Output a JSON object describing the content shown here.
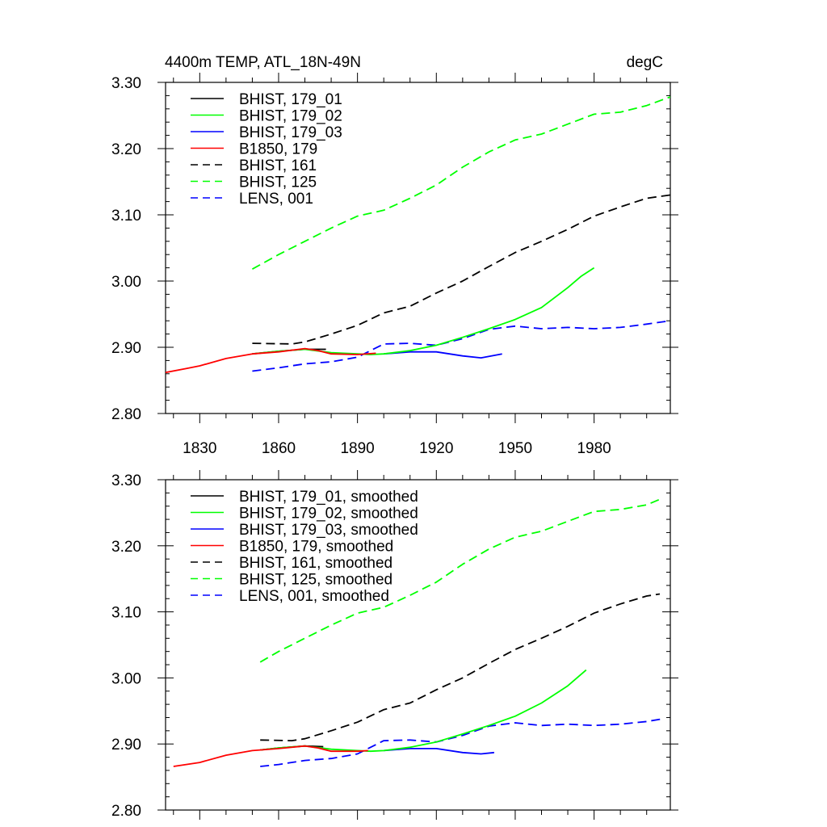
{
  "chart_data": [
    {
      "type": "line",
      "title": "4400m TEMP, ATL_18N-49N",
      "units": "degC",
      "xlim": [
        1817,
        2009
      ],
      "ylim": [
        2.8,
        3.3
      ],
      "xticks": [
        1830,
        1860,
        1890,
        1920,
        1950,
        1980
      ],
      "xtick_labels": [
        "1830",
        "1860",
        "1890",
        "1920",
        "1950",
        "1980"
      ],
      "yticks": [
        2.8,
        2.9,
        3.0,
        3.1,
        3.2,
        3.3
      ],
      "ytick_labels": [
        "2.80",
        "2.90",
        "3.00",
        "3.10",
        "3.20",
        "3.30"
      ],
      "legend_position": "top-left",
      "series": [
        {
          "name": "BHIST, 179_01",
          "color": "#000000",
          "dash": false,
          "x": [
            1850,
            1860,
            1870,
            1878
          ],
          "y": [
            2.89,
            2.894,
            2.897,
            2.897
          ]
        },
        {
          "name": "BHIST, 179_02",
          "color": "#00ff00",
          "dash": false,
          "x": [
            1850,
            1860,
            1870,
            1880,
            1890,
            1895,
            1900,
            1910,
            1920,
            1930,
            1940,
            1950,
            1960,
            1970,
            1975,
            1980
          ],
          "y": [
            2.89,
            2.894,
            2.897,
            2.892,
            2.89,
            2.889,
            2.89,
            2.895,
            2.903,
            2.915,
            2.928,
            2.942,
            2.96,
            2.99,
            3.007,
            3.02
          ]
        },
        {
          "name": "BHIST, 179_03",
          "color": "#0000ff",
          "dash": false,
          "x": [
            1900,
            1910,
            1920,
            1930,
            1937,
            1945
          ],
          "y": [
            2.89,
            2.893,
            2.893,
            2.887,
            2.884,
            2.89
          ]
        },
        {
          "name": "B1850, 179",
          "color": "#ff0000",
          "dash": false,
          "x": [
            1817,
            1825,
            1830,
            1840,
            1850,
            1860,
            1870,
            1875,
            1880,
            1890,
            1897
          ],
          "y": [
            2.862,
            2.868,
            2.872,
            2.883,
            2.89,
            2.893,
            2.898,
            2.895,
            2.89,
            2.889,
            2.891
          ]
        },
        {
          "name": "BHIST, 161",
          "color": "#000000",
          "dash": true,
          "x": [
            1850,
            1865,
            1870,
            1880,
            1890,
            1900,
            1910,
            1920,
            1930,
            1940,
            1950,
            1960,
            1970,
            1980,
            1990,
            2000,
            2009
          ],
          "y": [
            2.906,
            2.905,
            2.908,
            2.92,
            2.933,
            2.952,
            2.962,
            2.982,
            3.0,
            3.022,
            3.043,
            3.06,
            3.078,
            3.098,
            3.112,
            3.125,
            3.13
          ]
        },
        {
          "name": "BHIST, 125",
          "color": "#00ff00",
          "dash": true,
          "x": [
            1850,
            1860,
            1870,
            1880,
            1890,
            1900,
            1910,
            1920,
            1930,
            1940,
            1950,
            1960,
            1970,
            1980,
            1990,
            2000,
            2009
          ],
          "y": [
            3.018,
            3.04,
            3.06,
            3.08,
            3.098,
            3.107,
            3.125,
            3.145,
            3.172,
            3.195,
            3.213,
            3.222,
            3.237,
            3.252,
            3.255,
            3.265,
            3.278
          ]
        },
        {
          "name": "LENS, 001",
          "color": "#0000ff",
          "dash": true,
          "x": [
            1850,
            1860,
            1870,
            1880,
            1890,
            1900,
            1910,
            1920,
            1930,
            1940,
            1950,
            1960,
            1970,
            1980,
            1990,
            2000,
            2009
          ],
          "y": [
            2.864,
            2.869,
            2.875,
            2.878,
            2.885,
            2.905,
            2.906,
            2.903,
            2.913,
            2.927,
            2.932,
            2.928,
            2.93,
            2.928,
            2.93,
            2.935,
            2.94
          ]
        }
      ]
    },
    {
      "type": "line",
      "xlim": [
        1817,
        2009
      ],
      "ylim": [
        2.8,
        3.3
      ],
      "yticks": [
        2.8,
        2.9,
        3.0,
        3.1,
        3.2,
        3.3
      ],
      "ytick_labels": [
        "2.80",
        "2.90",
        "3.00",
        "3.10",
        "3.20",
        "3.30"
      ],
      "legend_position": "top-left",
      "series": [
        {
          "name": "BHIST, 179_01, smoothed",
          "color": "#000000",
          "dash": false,
          "x": [
            1853,
            1860,
            1870,
            1877
          ],
          "y": [
            2.891,
            2.894,
            2.897,
            2.896
          ]
        },
        {
          "name": "BHIST, 179_02, smoothed",
          "color": "#00ff00",
          "dash": false,
          "x": [
            1853,
            1860,
            1870,
            1880,
            1890,
            1895,
            1900,
            1910,
            1920,
            1930,
            1940,
            1950,
            1960,
            1970,
            1977
          ],
          "y": [
            2.891,
            2.894,
            2.897,
            2.892,
            2.89,
            2.889,
            2.89,
            2.895,
            2.903,
            2.915,
            2.928,
            2.942,
            2.962,
            2.988,
            3.012
          ]
        },
        {
          "name": "BHIST, 179_03, smoothed",
          "color": "#0000ff",
          "dash": false,
          "x": [
            1900,
            1910,
            1920,
            1930,
            1937,
            1942
          ],
          "y": [
            2.89,
            2.893,
            2.893,
            2.887,
            2.885,
            2.887
          ]
        },
        {
          "name": "B1850, 179, smoothed",
          "color": "#ff0000",
          "dash": false,
          "x": [
            1820,
            1830,
            1840,
            1850,
            1860,
            1870,
            1875,
            1880,
            1890,
            1894
          ],
          "y": [
            2.866,
            2.872,
            2.883,
            2.89,
            2.893,
            2.897,
            2.894,
            2.889,
            2.889,
            2.89
          ]
        },
        {
          "name": "BHIST, 161, smoothed",
          "color": "#000000",
          "dash": true,
          "x": [
            1853,
            1865,
            1870,
            1880,
            1890,
            1900,
            1910,
            1920,
            1930,
            1940,
            1950,
            1960,
            1970,
            1980,
            1990,
            2000,
            2005
          ],
          "y": [
            2.906,
            2.905,
            2.908,
            2.92,
            2.933,
            2.952,
            2.962,
            2.982,
            3.0,
            3.022,
            3.043,
            3.06,
            3.078,
            3.098,
            3.112,
            3.124,
            3.127
          ]
        },
        {
          "name": "BHIST, 125, smoothed",
          "color": "#00ff00",
          "dash": true,
          "x": [
            1853,
            1860,
            1870,
            1880,
            1890,
            1900,
            1910,
            1920,
            1930,
            1940,
            1950,
            1960,
            1970,
            1980,
            1990,
            2000,
            2006
          ],
          "y": [
            3.024,
            3.04,
            3.06,
            3.08,
            3.098,
            3.107,
            3.125,
            3.145,
            3.172,
            3.195,
            3.213,
            3.222,
            3.237,
            3.252,
            3.255,
            3.262,
            3.272
          ]
        },
        {
          "name": "LENS, 001, smoothed",
          "color": "#0000ff",
          "dash": true,
          "x": [
            1853,
            1860,
            1870,
            1880,
            1890,
            1900,
            1910,
            1920,
            1930,
            1940,
            1950,
            1960,
            1970,
            1980,
            1990,
            2000,
            2006
          ],
          "y": [
            2.866,
            2.869,
            2.875,
            2.878,
            2.885,
            2.905,
            2.906,
            2.903,
            2.913,
            2.927,
            2.932,
            2.928,
            2.93,
            2.928,
            2.93,
            2.934,
            2.938
          ]
        }
      ]
    }
  ]
}
